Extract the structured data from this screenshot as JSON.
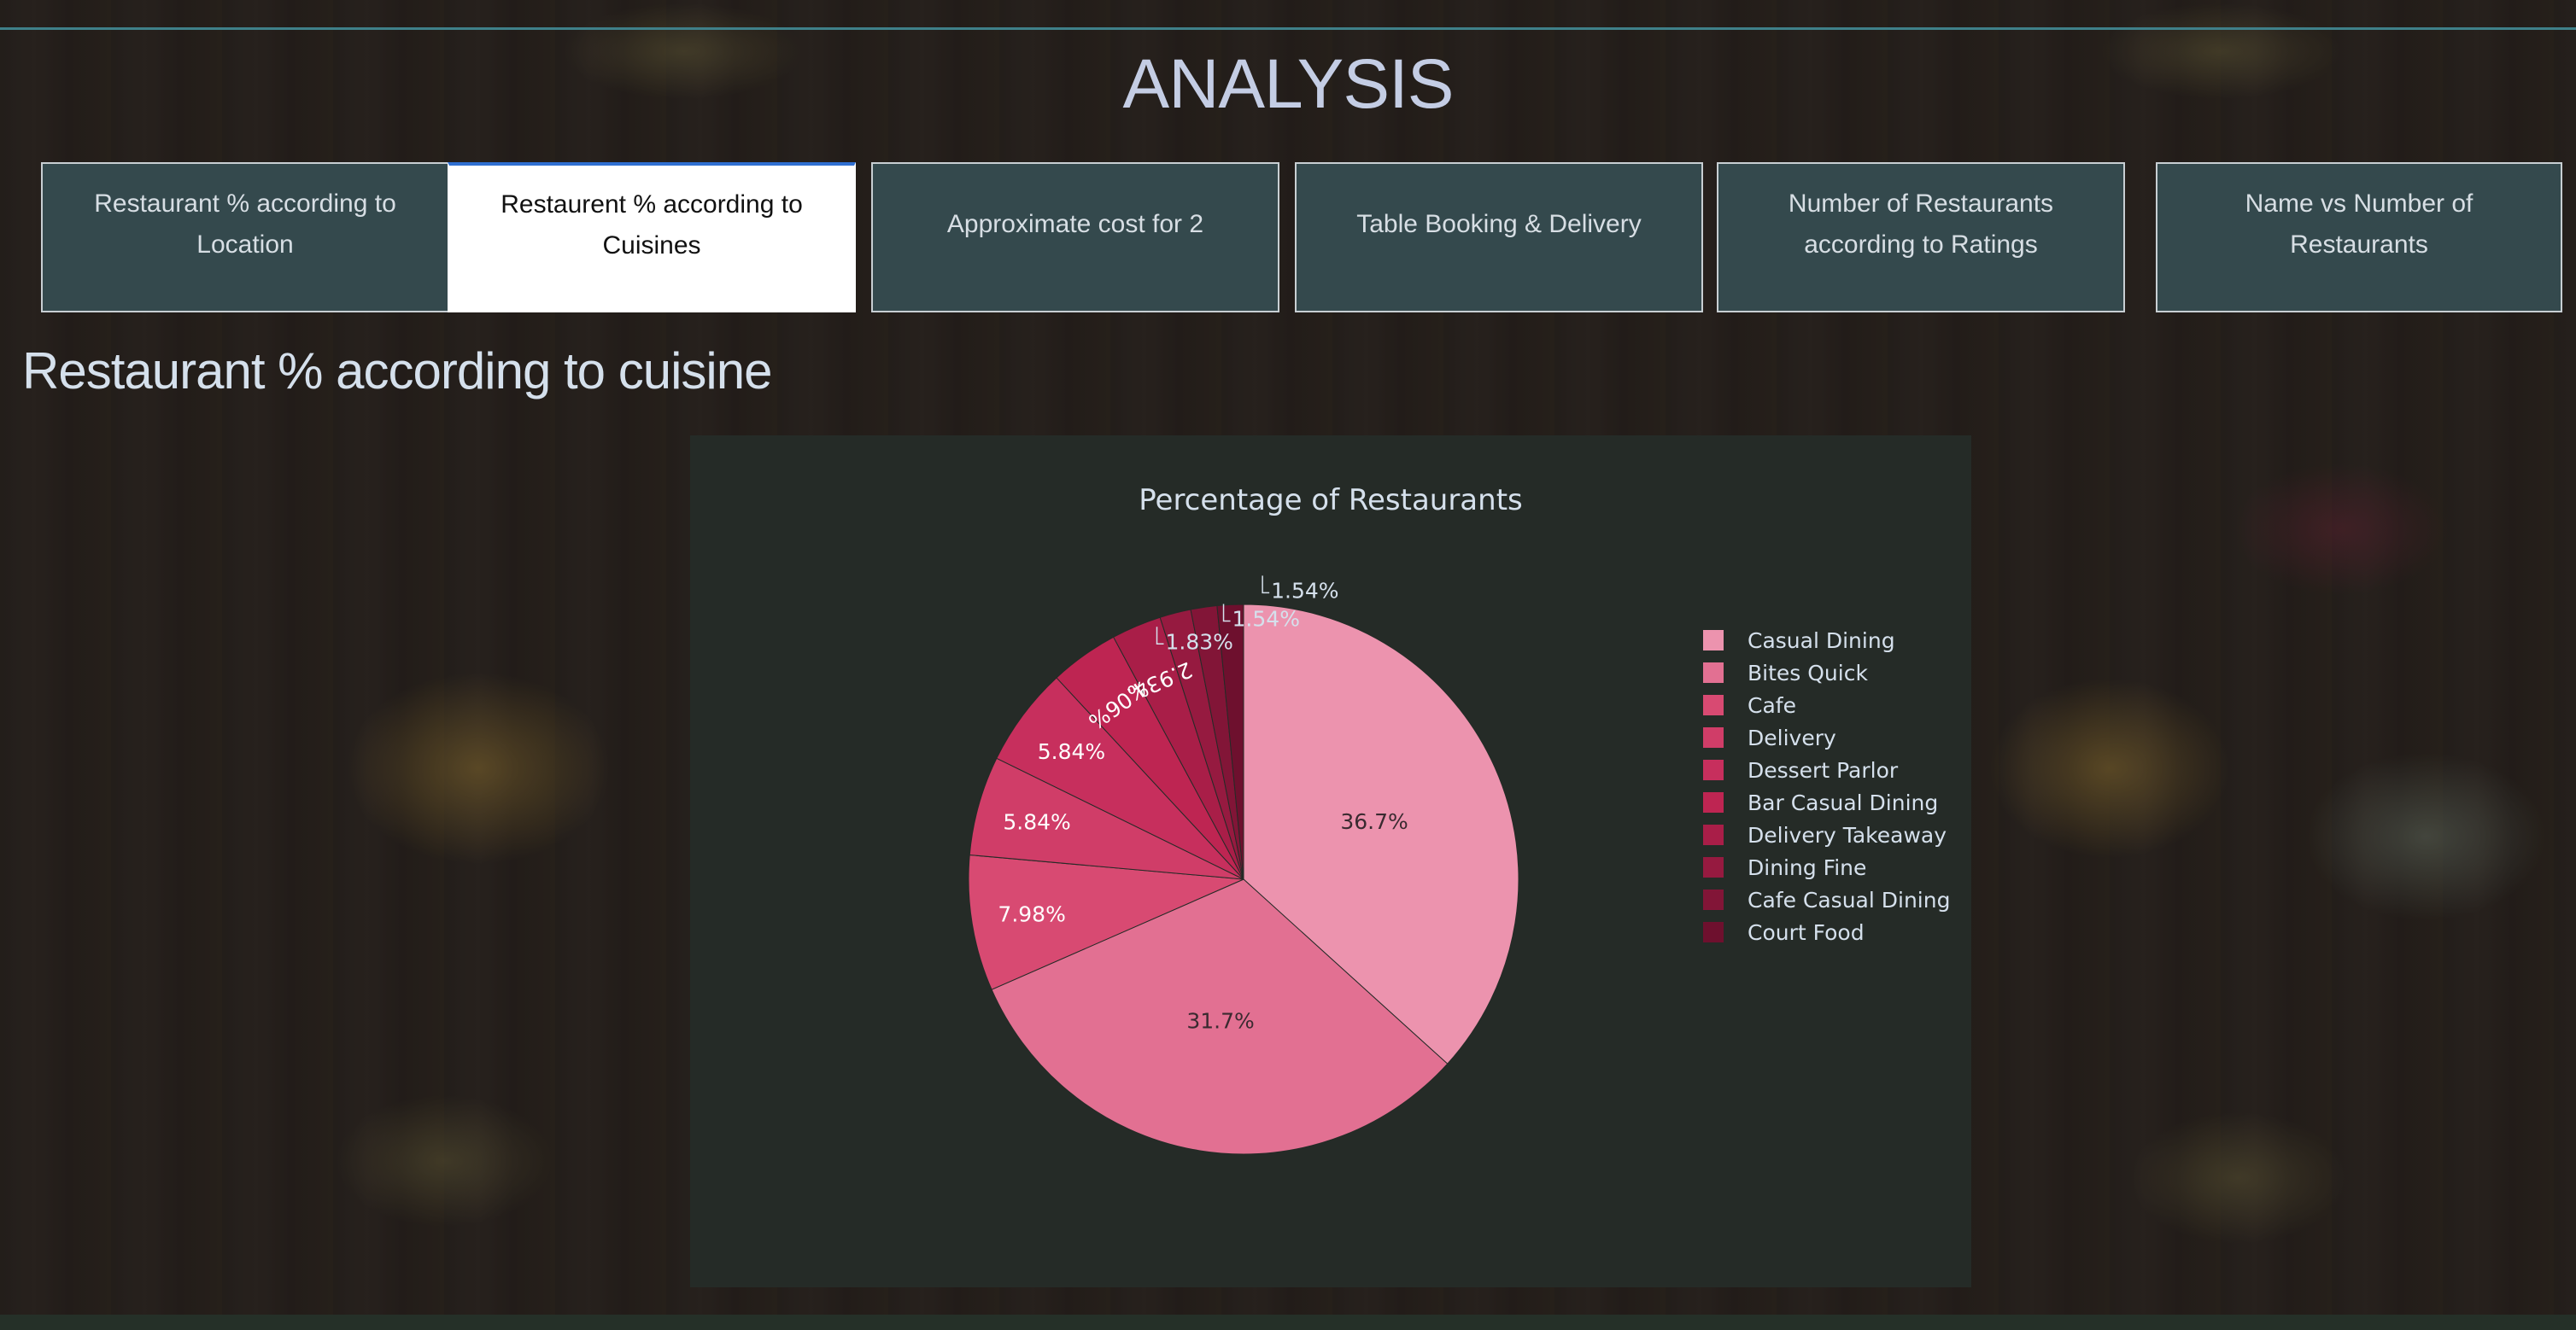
{
  "page": {
    "title": "ANALYSIS"
  },
  "tabs": [
    {
      "label": "Restaurant % according to Location",
      "active": false
    },
    {
      "label": "Restaurent % according to Cuisines",
      "active": true
    },
    {
      "label": "Approximate cost for 2",
      "active": false
    },
    {
      "label": "Table Booking & Delivery",
      "active": false
    },
    {
      "label": "Number of Restaurants according to Ratings",
      "active": false
    },
    {
      "label": "Name vs Number of Restaurants",
      "active": false
    }
  ],
  "section": {
    "title": "Restaurant % according to cuisine"
  },
  "colors": {
    "accent_line": "#3f8089",
    "tab_bg": "#34494d",
    "panel_bg": "#252b27",
    "text_light": "#d5e0ec"
  },
  "chart_data": {
    "type": "pie",
    "title": "Percentage of Restaurants",
    "legend_position": "right",
    "categories": [
      "Casual Dining",
      "Bites Quick",
      "Cafe",
      "Delivery",
      "Dessert Parlor",
      "Bar Casual Dining",
      "Delivery Takeaway",
      "Dining Fine",
      "Cafe Casual Dining",
      "Court Food"
    ],
    "values": [
      36.7,
      31.7,
      7.98,
      5.84,
      5.84,
      4.06,
      2.93,
      1.83,
      1.54,
      1.54
    ],
    "labels": [
      "36.7%",
      "31.7%",
      "7.98%",
      "5.84%",
      "5.84%",
      "4.06%",
      "2.93%",
      "1.83%",
      "1.54%",
      "1.54%"
    ],
    "colors": [
      "#ec93ae",
      "#e27092",
      "#d84a72",
      "#d03d68",
      "#c72f5d",
      "#be2552",
      "#a91e48",
      "#961a40",
      "#821537",
      "#6e102e"
    ]
  }
}
